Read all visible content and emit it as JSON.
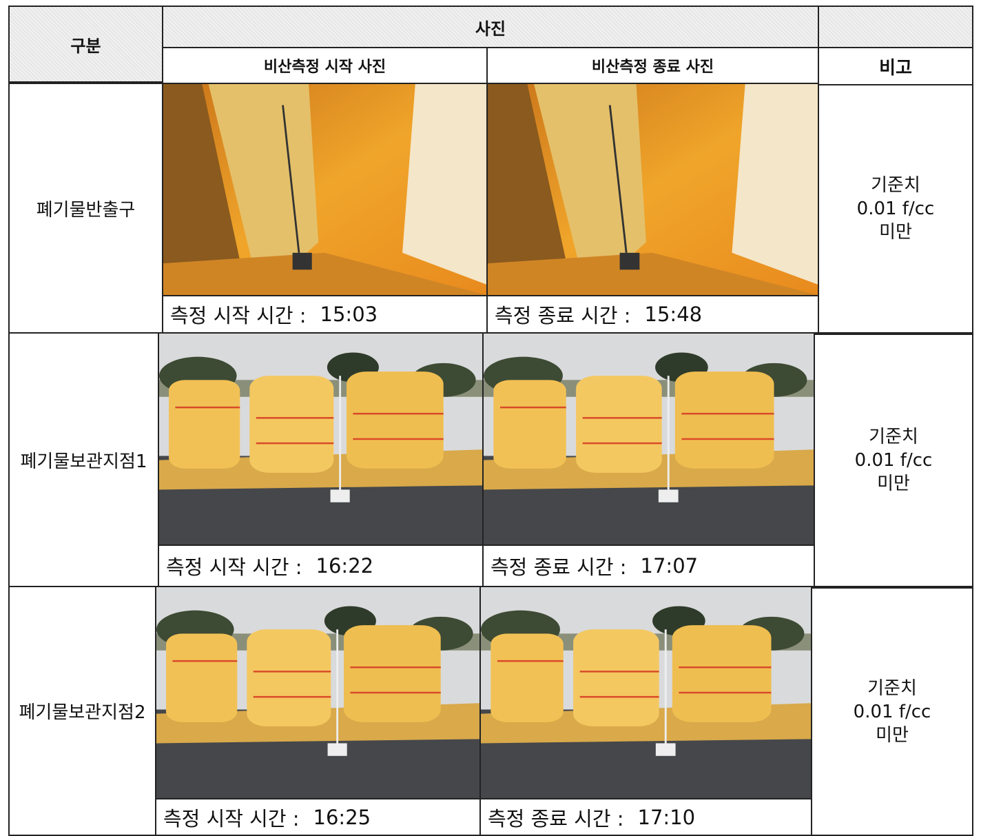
{
  "header": {
    "category": "구분",
    "photos": "사진",
    "start_photo": "비산측정 시작 사진",
    "end_photo": "비산측정 종료 사진",
    "remarks": "비고"
  },
  "rows": [
    {
      "label": "폐기물반출구",
      "start": {
        "caption": "측정 시작 시간 :",
        "time": "15:03"
      },
      "end": {
        "caption": "측정 종료 시간 :",
        "time": "15:48"
      },
      "note": [
        "기준치",
        "0.01 f/cc",
        "미만"
      ]
    },
    {
      "label": "폐기물보관지점1",
      "start": {
        "caption": "측정 시작 시간 :",
        "time": "16:22"
      },
      "end": {
        "caption": "측정 종료 시간 :",
        "time": "17:07"
      },
      "note": [
        "기준치",
        "0.01 f/cc",
        "미만"
      ]
    },
    {
      "label": "폐기물보관지점2",
      "start": {
        "caption": "측정 시작 시간 :",
        "time": "16:25"
      },
      "end": {
        "caption": "측정 종료 시간 :",
        "time": "17:10"
      },
      "note": [
        "기준치",
        "0.01 f/cc",
        "미만"
      ]
    }
  ]
}
